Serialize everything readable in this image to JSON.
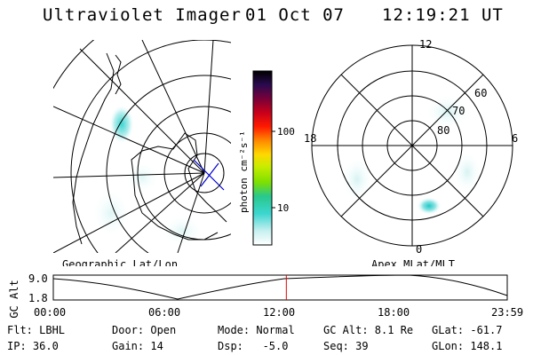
{
  "header": {
    "instrument": "Ultraviolet Imager",
    "date": "01 Oct 07",
    "time": "12:19:21 UT"
  },
  "left_map": {
    "caption": "Geographic Lat/Lon"
  },
  "right_map": {
    "caption": "Apex MLat/MLT",
    "mlt_labels": {
      "top": "12",
      "left": "18",
      "right": "6",
      "bottom": "0"
    },
    "lat_labels": [
      "60",
      "70",
      "80"
    ]
  },
  "colorbar": {
    "unit_label": "photon cm⁻²s⁻¹",
    "ticks": [
      "100",
      "10"
    ],
    "scale": "log",
    "colors": [
      "#ffffff",
      "#c8f0f0",
      "#3cd6d0",
      "#28c88c",
      "#7ee000",
      "#c8ec00",
      "#ffd800",
      "#ff8800",
      "#ff1a00",
      "#c8001a",
      "#780038",
      "#2a0a50",
      "#000000"
    ]
  },
  "timeline": {
    "y_axis_label": "GC Alt",
    "y_ticks": [
      "9.0",
      "1.8"
    ],
    "x_ticks": [
      "00:00",
      "06:00",
      "12:00",
      "18:00",
      "23:59"
    ],
    "marker_time_hours": 12.32,
    "marker_color": "#e00000"
  },
  "info": {
    "row1": {
      "flt": "Flt: LBHL",
      "door": "Door: Open",
      "mode": "Mode: Normal",
      "gcalt": "GC Alt: 8.1 Re",
      "glat": "GLat: -61.7"
    },
    "row2": {
      "ip": "IP: 36.0",
      "gain": "Gain: 14",
      "dsp": "Dsp:   -5.0",
      "seq": "Seq: 39",
      "glon": "GLon: 148.1"
    }
  }
}
